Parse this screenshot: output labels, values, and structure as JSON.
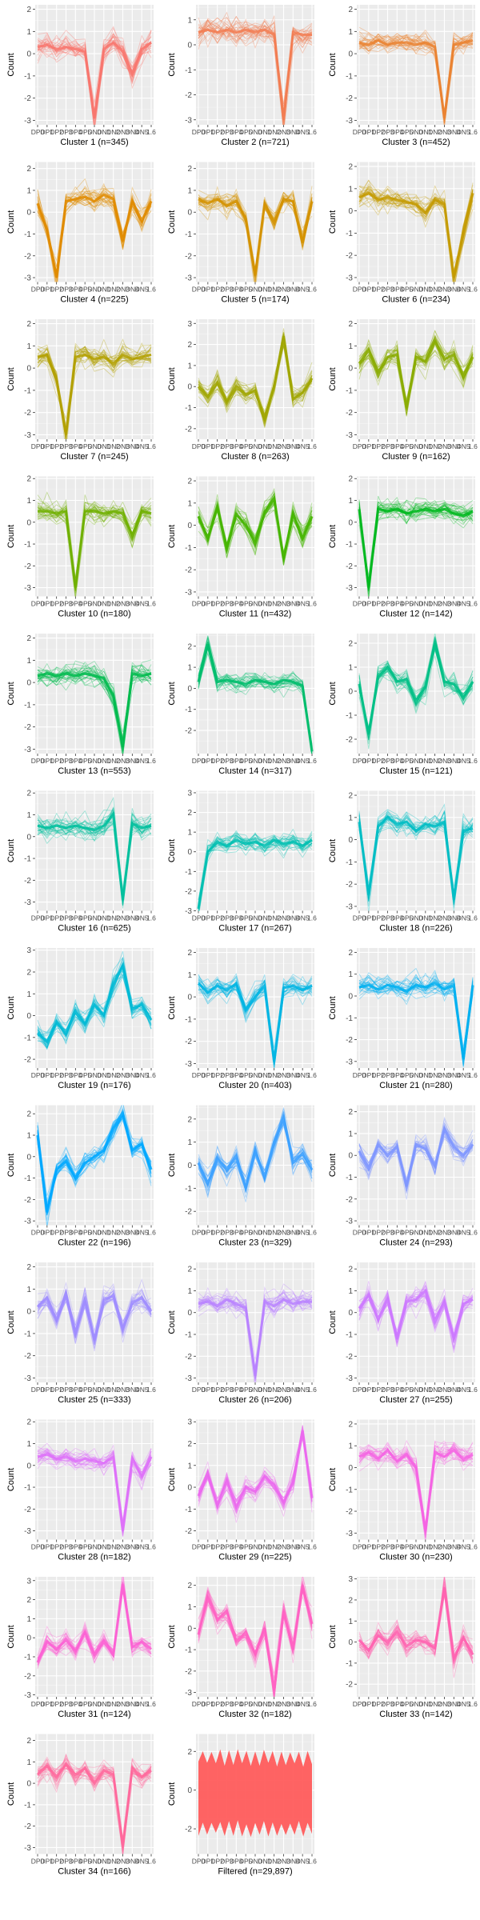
{
  "chart_data": {
    "type": "line",
    "description_layout": "small multiples grid, 3 columns",
    "ylabel": "Count",
    "x_tick_labels": [
      "DP0",
      "DP1",
      "DP2",
      "DP3",
      "DP4",
      "DP5",
      "DN0",
      "DN1",
      "DN2",
      "DN3",
      "DN4",
      "DN5",
      "1.6"
    ],
    "panels": [
      {
        "title": "Cluster 1 (n=345)",
        "color": "#F8766D",
        "ylim": [
          -3.2,
          2.2
        ],
        "yticks": [
          -3,
          -2,
          -1,
          0,
          1,
          2
        ],
        "profile": [
          0.3,
          0.4,
          0.2,
          0.3,
          0.2,
          0.1,
          -2.9,
          0.2,
          0.5,
          0.1,
          -0.9,
          0.2,
          0.5
        ]
      },
      {
        "title": "Cluster 2 (n=721)",
        "color": "#F27D52",
        "ylim": [
          -3.2,
          1.6
        ],
        "yticks": [
          -3,
          -2,
          -1,
          0,
          1
        ],
        "profile": [
          0.5,
          0.6,
          0.5,
          0.6,
          0.5,
          0.6,
          0.5,
          0.6,
          0.4,
          -3.0,
          0.5,
          0.4,
          0.4
        ]
      },
      {
        "title": "Cluster 3 (n=452)",
        "color": "#EA8331",
        "ylim": [
          -3.2,
          2.2
        ],
        "yticks": [
          -3,
          -2,
          -1,
          0,
          1,
          2
        ],
        "profile": [
          0.5,
          0.4,
          0.6,
          0.4,
          0.5,
          0.5,
          0.4,
          0.5,
          0.3,
          -2.9,
          0.4,
          0.5,
          0.6
        ]
      },
      {
        "title": "Cluster 4 (n=225)",
        "color": "#E08B00",
        "ylim": [
          -3.2,
          2.3
        ],
        "yticks": [
          -3,
          -2,
          -1,
          0,
          1,
          2
        ],
        "profile": [
          0.4,
          -0.8,
          -3.0,
          0.5,
          0.6,
          0.7,
          0.5,
          0.8,
          0.6,
          -1.3,
          0.5,
          -0.4,
          0.5
        ]
      },
      {
        "title": "Cluster 5 (n=174)",
        "color": "#D39200",
        "ylim": [
          -3.2,
          2.3
        ],
        "yticks": [
          -3,
          -2,
          -1,
          0,
          1,
          2
        ],
        "profile": [
          0.6,
          0.4,
          0.6,
          0.3,
          0.5,
          -0.3,
          -2.9,
          0.4,
          -0.5,
          0.6,
          0.5,
          -1.4,
          0.5
        ]
      },
      {
        "title": "Cluster 6 (n=234)",
        "color": "#C49A00",
        "ylim": [
          -3.2,
          2.2
        ],
        "yticks": [
          -3,
          -2,
          -1,
          0,
          1,
          2
        ],
        "profile": [
          0.6,
          0.8,
          0.5,
          0.6,
          0.5,
          0.4,
          0.3,
          -0.1,
          0.5,
          0.3,
          -3.0,
          -1.0,
          0.8
        ]
      },
      {
        "title": "Cluster 7 (n=245)",
        "color": "#B3A000",
        "ylim": [
          -3.2,
          2.2
        ],
        "yticks": [
          -3,
          -2,
          -1,
          0,
          1,
          2
        ],
        "profile": [
          0.5,
          0.6,
          -0.5,
          -3.0,
          0.5,
          0.6,
          0.4,
          0.5,
          0.2,
          0.6,
          0.4,
          0.5,
          0.6
        ]
      },
      {
        "title": "Cluster 8 (n=263)",
        "color": "#A0A600",
        "ylim": [
          -2.5,
          3.2
        ],
        "yticks": [
          -2,
          -1,
          0,
          1,
          2,
          3
        ],
        "profile": [
          0.0,
          -0.5,
          0.2,
          -0.7,
          0.0,
          -0.4,
          -0.2,
          -1.5,
          0.0,
          2.4,
          -0.6,
          -0.3,
          0.4
        ]
      },
      {
        "title": "Cluster 9 (n=162)",
        "color": "#8AAB00",
        "ylim": [
          -3.2,
          2.2
        ],
        "yticks": [
          -3,
          -2,
          -1,
          0,
          1,
          2
        ],
        "profile": [
          0.2,
          0.8,
          -0.2,
          0.5,
          0.6,
          -1.8,
          0.5,
          0.3,
          1.2,
          0.4,
          0.6,
          -0.4,
          0.5
        ]
      },
      {
        "title": "Cluster 10 (n=180)",
        "color": "#70B000",
        "ylim": [
          -3.4,
          2.1
        ],
        "yticks": [
          -3,
          -2,
          -1,
          0,
          1,
          2
        ],
        "profile": [
          0.5,
          0.5,
          0.4,
          0.5,
          -3.0,
          0.5,
          0.5,
          0.4,
          0.5,
          0.4,
          -0.6,
          0.5,
          0.4
        ]
      },
      {
        "title": "Cluster 11 (n=432)",
        "color": "#45B500",
        "ylim": [
          -3.2,
          2.2
        ],
        "yticks": [
          -3,
          -2,
          -1,
          0,
          1,
          2
        ],
        "profile": [
          0.4,
          -0.6,
          0.8,
          -1.0,
          0.5,
          0.0,
          -0.8,
          0.6,
          1.2,
          -1.5,
          0.5,
          -0.6,
          0.4
        ]
      },
      {
        "title": "Cluster 12 (n=142)",
        "color": "#00B81F",
        "ylim": [
          -3.4,
          2.1
        ],
        "yticks": [
          -3,
          -2,
          -1,
          0,
          1,
          2
        ],
        "profile": [
          0.6,
          -3.0,
          0.6,
          0.5,
          0.6,
          0.4,
          0.5,
          0.6,
          0.5,
          0.6,
          0.4,
          0.3,
          0.5
        ]
      },
      {
        "title": "Cluster 13 (n=553)",
        "color": "#00BB4E",
        "ylim": [
          -3.2,
          2.2
        ],
        "yticks": [
          -3,
          -2,
          -1,
          0,
          1,
          2
        ],
        "profile": [
          0.3,
          0.4,
          0.3,
          0.4,
          0.3,
          0.4,
          0.3,
          0.2,
          -0.6,
          -2.9,
          0.4,
          0.3,
          0.4
        ]
      },
      {
        "title": "Cluster 14 (n=317)",
        "color": "#00BD6C",
        "ylim": [
          -3.1,
          2.6
        ],
        "yticks": [
          -2,
          -1,
          0,
          1,
          2
        ],
        "profile": [
          0.3,
          2.1,
          0.3,
          0.4,
          0.3,
          0.2,
          0.4,
          0.3,
          0.2,
          0.4,
          0.3,
          0.1,
          -3.0
        ]
      },
      {
        "title": "Cluster 15 (n=121)",
        "color": "#00BF86",
        "ylim": [
          -2.6,
          2.4
        ],
        "yticks": [
          -2,
          -1,
          0,
          1,
          2
        ],
        "profile": [
          0.3,
          -1.8,
          0.6,
          1.0,
          0.4,
          0.5,
          -0.4,
          0.2,
          2.0,
          0.4,
          0.3,
          -0.3,
          0.4
        ]
      },
      {
        "title": "Cluster 16 (n=625)",
        "color": "#00C09D",
        "ylim": [
          -3.4,
          2.1
        ],
        "yticks": [
          -3,
          -2,
          -1,
          0,
          1,
          2
        ],
        "profile": [
          0.5,
          0.4,
          0.5,
          0.4,
          0.5,
          0.4,
          0.3,
          0.5,
          1.0,
          -2.9,
          0.6,
          0.4,
          0.5
        ]
      },
      {
        "title": "Cluster 17 (n=267)",
        "color": "#00BFB2",
        "ylim": [
          -3.0,
          3.1
        ],
        "yticks": [
          -3,
          -2,
          -1,
          0,
          1,
          2,
          3
        ],
        "profile": [
          -2.9,
          0.0,
          0.5,
          0.3,
          0.6,
          0.4,
          0.5,
          0.3,
          0.6,
          0.4,
          0.5,
          0.3,
          0.6
        ]
      },
      {
        "title": "Cluster 18 (n=226)",
        "color": "#00BDC4",
        "ylim": [
          -3.2,
          2.2
        ],
        "yticks": [
          -3,
          -2,
          -1,
          0,
          1,
          2
        ],
        "profile": [
          0.8,
          -2.5,
          0.6,
          1.0,
          0.7,
          0.8,
          0.4,
          0.7,
          0.6,
          0.8,
          -2.7,
          0.4,
          0.5
        ]
      },
      {
        "title": "Cluster 19 (n=176)",
        "color": "#00BAD5",
        "ylim": [
          -2.4,
          3.1
        ],
        "yticks": [
          -2,
          -1,
          0,
          1,
          2,
          3
        ],
        "profile": [
          -0.8,
          -1.2,
          -0.3,
          -0.8,
          0.2,
          -0.4,
          0.5,
          0.0,
          1.4,
          2.3,
          0.3,
          0.5,
          -0.2
        ]
      },
      {
        "title": "Cluster 20 (n=403)",
        "color": "#00B5E3",
        "ylim": [
          -3.2,
          2.2
        ],
        "yticks": [
          -3,
          -2,
          -1,
          0,
          1,
          2
        ],
        "profile": [
          0.6,
          0.2,
          0.5,
          0.3,
          0.6,
          -0.6,
          0.0,
          0.5,
          -2.9,
          0.4,
          0.5,
          0.3,
          0.5
        ]
      },
      {
        "title": "Cluster 21 (n=280)",
        "color": "#00B0F0",
        "ylim": [
          -3.3,
          2.2
        ],
        "yticks": [
          -3,
          -2,
          -1,
          0,
          1,
          2
        ],
        "profile": [
          0.4,
          0.5,
          0.3,
          0.5,
          0.4,
          0.2,
          0.5,
          0.4,
          0.6,
          0.3,
          0.5,
          -2.9,
          0.5
        ]
      },
      {
        "title": "Cluster 22 (n=196)",
        "color": "#00A8FF",
        "ylim": [
          -3.2,
          2.4
        ],
        "yticks": [
          -3,
          -2,
          -1,
          0,
          1,
          2
        ],
        "profile": [
          1.0,
          -2.6,
          -0.6,
          -0.2,
          -1.0,
          -0.3,
          0.0,
          0.3,
          1.3,
          2.0,
          0.3,
          0.6,
          -0.6
        ]
      },
      {
        "title": "Cluster 23 (n=329)",
        "color": "#3DA1FF",
        "ylim": [
          -2.6,
          2.6
        ],
        "yticks": [
          -2,
          -1,
          0,
          1,
          2
        ],
        "profile": [
          0.1,
          -0.8,
          0.3,
          -0.2,
          0.4,
          -1.0,
          0.6,
          -0.5,
          1.0,
          2.0,
          0.1,
          0.5,
          -0.2
        ]
      },
      {
        "title": "Cluster 24 (n=293)",
        "color": "#7F96FF",
        "ylim": [
          -3.2,
          2.3
        ],
        "yticks": [
          -3,
          -2,
          -1,
          0,
          1,
          2
        ],
        "profile": [
          0.2,
          -0.6,
          0.5,
          0.0,
          0.4,
          -1.4,
          0.5,
          0.3,
          -0.5,
          1.2,
          0.4,
          0.0,
          0.5
        ]
      },
      {
        "title": "Cluster 25 (n=333)",
        "color": "#9F8CFF",
        "ylim": [
          -3.2,
          2.2
        ],
        "yticks": [
          -3,
          -2,
          -1,
          0,
          1,
          2
        ],
        "profile": [
          0.2,
          0.6,
          -0.4,
          0.8,
          -1.0,
          0.5,
          -1.3,
          0.5,
          0.7,
          -0.8,
          0.4,
          0.6,
          0.0
        ]
      },
      {
        "title": "Cluster 26 (n=206)",
        "color": "#B983FF",
        "ylim": [
          -3.2,
          2.3
        ],
        "yticks": [
          -3,
          -2,
          -1,
          0,
          1,
          2
        ],
        "profile": [
          0.4,
          0.5,
          0.3,
          0.6,
          0.4,
          0.2,
          -2.9,
          0.5,
          0.3,
          0.6,
          0.4,
          0.5,
          0.5
        ]
      },
      {
        "title": "Cluster 27 (n=255)",
        "color": "#CD79FF",
        "ylim": [
          -3.2,
          2.3
        ],
        "yticks": [
          -3,
          -2,
          -1,
          0,
          1,
          2
        ],
        "profile": [
          0.2,
          0.8,
          -0.3,
          0.6,
          -1.2,
          0.5,
          0.6,
          1.0,
          -0.4,
          0.5,
          -1.2,
          0.4,
          0.6
        ]
      },
      {
        "title": "Cluster 28 (n=182)",
        "color": "#DE71F9",
        "ylim": [
          -3.4,
          2.1
        ],
        "yticks": [
          -3,
          -2,
          -1,
          0,
          1,
          2
        ],
        "profile": [
          0.4,
          0.5,
          0.3,
          0.4,
          0.2,
          0.3,
          0.2,
          0.1,
          0.4,
          -3.0,
          0.3,
          -0.5,
          0.4
        ]
      },
      {
        "title": "Cluster 29 (n=225)",
        "color": "#EB69EF",
        "ylim": [
          -2.4,
          3.1
        ],
        "yticks": [
          -2,
          -1,
          0,
          1,
          2,
          3
        ],
        "profile": [
          -0.4,
          0.6,
          -0.8,
          0.3,
          -0.9,
          0.0,
          -0.2,
          0.5,
          0.1,
          -0.7,
          0.2,
          2.6,
          -0.5
        ]
      },
      {
        "title": "Cluster 30 (n=230)",
        "color": "#F564E3",
        "ylim": [
          -3.3,
          2.2
        ],
        "yticks": [
          -3,
          -2,
          -1,
          0,
          1,
          2
        ],
        "profile": [
          0.5,
          0.7,
          0.4,
          0.8,
          0.3,
          0.6,
          0.0,
          -2.9,
          0.7,
          0.5,
          0.8,
          0.4,
          0.6
        ]
      },
      {
        "title": "Cluster 31 (n=124)",
        "color": "#FB61D4",
        "ylim": [
          -3.1,
          3.2
        ],
        "yticks": [
          -3,
          -2,
          -1,
          0,
          1,
          2,
          3
        ],
        "profile": [
          -1.3,
          -0.2,
          -0.6,
          -0.1,
          -0.7,
          0.3,
          -0.9,
          -0.2,
          -0.9,
          2.8,
          -0.5,
          -0.2,
          -0.6
        ]
      },
      {
        "title": "Cluster 32 (n=182)",
        "color": "#FF61C3",
        "ylim": [
          -3.2,
          2.4
        ],
        "yticks": [
          -3,
          -2,
          -1,
          0,
          1,
          2
        ],
        "profile": [
          -0.3,
          1.4,
          0.4,
          0.8,
          -0.6,
          -0.2,
          -1.2,
          0.0,
          -2.9,
          0.8,
          -1.0,
          2.0,
          0.2
        ]
      },
      {
        "title": "Cluster 33 (n=142)",
        "color": "#FF63B0",
        "ylim": [
          -2.6,
          3.1
        ],
        "yticks": [
          -2,
          -1,
          0,
          1,
          2,
          3
        ],
        "profile": [
          0.1,
          -0.4,
          0.3,
          0.0,
          0.5,
          -0.2,
          0.1,
          0.0,
          -0.3,
          2.6,
          -0.8,
          0.2,
          -0.6
        ]
      },
      {
        "title": "Cluster 34 (n=166)",
        "color": "#FF689C",
        "ylim": [
          -3.3,
          2.3
        ],
        "yticks": [
          -3,
          -2,
          -1,
          0,
          1,
          2
        ],
        "profile": [
          0.4,
          0.8,
          0.3,
          0.9,
          0.4,
          0.7,
          0.0,
          0.6,
          0.4,
          -2.9,
          0.7,
          0.3,
          0.6
        ]
      },
      {
        "title": "Filtered (n=29,897)",
        "color": "#FF5C5C",
        "ylim": [
          -3.3,
          2.9
        ],
        "yticks": [
          -2,
          0,
          2
        ],
        "profile": [
          0.0,
          0.0,
          0.0,
          0.0,
          0.0,
          0.0,
          0.0,
          0.0,
          0.0,
          0.0,
          0.0,
          0.0,
          0.0
        ],
        "filled": true
      }
    ]
  }
}
